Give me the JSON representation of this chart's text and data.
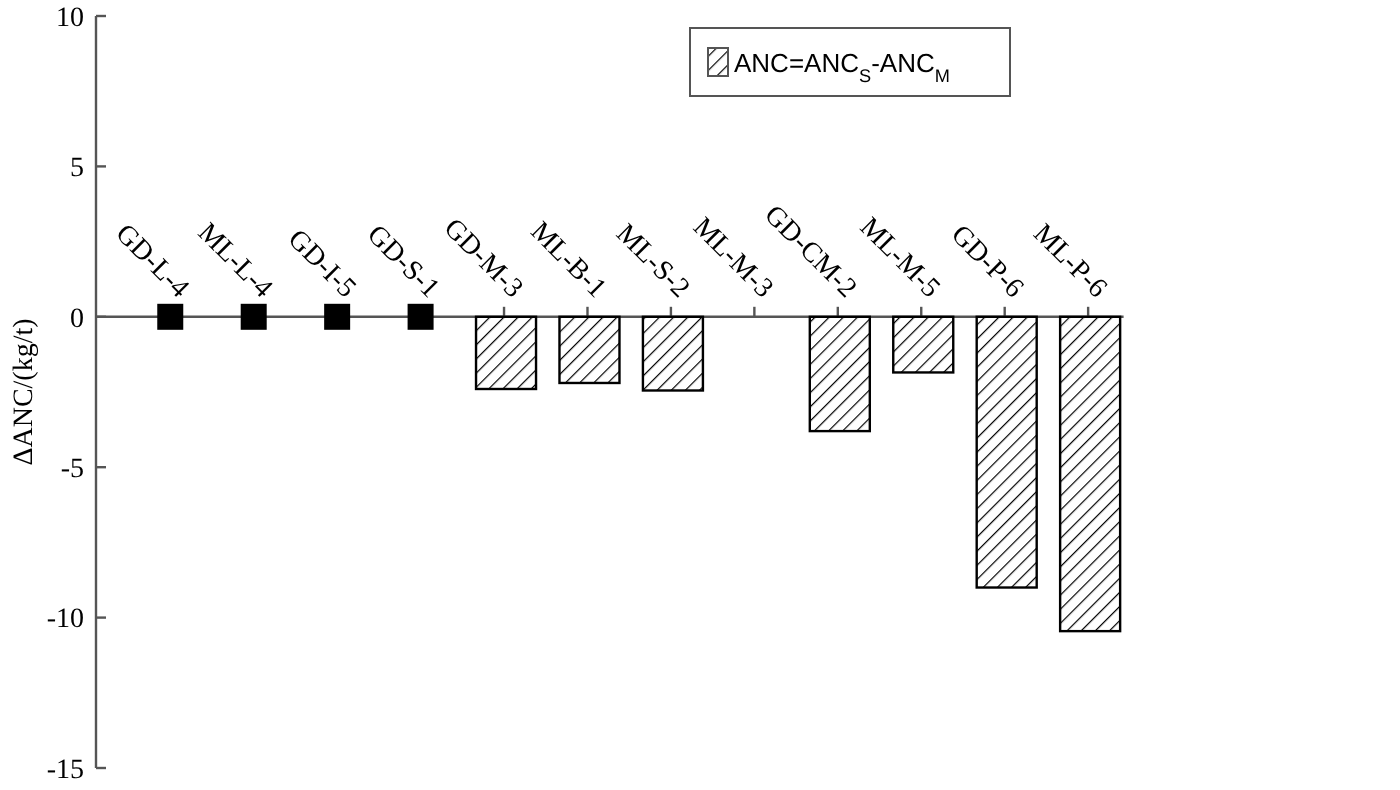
{
  "chart_data": {
    "type": "bar",
    "ylabel": "ΔANC/(kg/t)",
    "categories": [
      "GD-L-4",
      "ML-L-4",
      "GD-I-5",
      "GD-S-1",
      "GD-M-3",
      "ML-B-1",
      "ML-S-2",
      "ML-M-3",
      "GD-CM-2",
      "ML-M-5",
      "GD-P-6",
      "ML-P-6"
    ],
    "series": [
      {
        "name": "ANC=ANC$_{S}$-ANC$_{M}$",
        "color": "#000000",
        "values": [
          null,
          null,
          null,
          null,
          -2.4,
          -2.2,
          -2.45,
          null,
          -3.8,
          -1.85,
          -9.0,
          -10.45
        ]
      },
      {
        "type": "scatter",
        "color": "#000000",
        "marker": "square",
        "x": [
          "GD-L-4",
          "ML-L-4",
          "GD-I-5",
          "GD-S-1"
        ],
        "values": [
          0,
          0,
          0,
          0
        ]
      }
    ],
    "ylim": [
      -15,
      10
    ],
    "yticks": [
      -15,
      -10,
      -5,
      0,
      5,
      10
    ],
    "legend": "top right",
    "grid": false
  }
}
